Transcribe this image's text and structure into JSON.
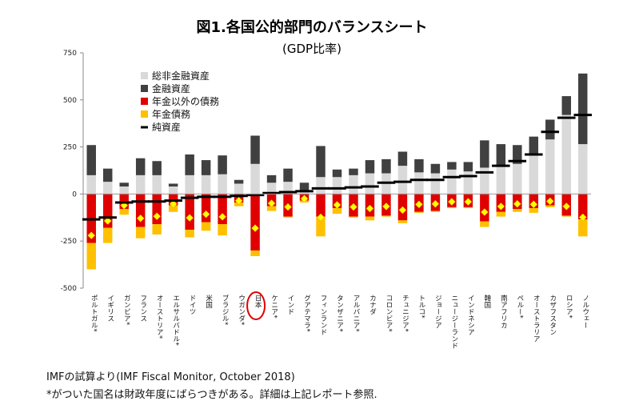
{
  "chart_data": {
    "type": "bar",
    "title": "図1.各国公的部門のバランスシート",
    "subtitle": "(GDP比率)",
    "ylim": [
      -500,
      750
    ],
    "yticks": [
      -500,
      -250,
      0,
      250,
      500,
      750
    ],
    "highlight_category": "日本",
    "legend": [
      {
        "name": "総非金融資産",
        "color": "#d9d9d9"
      },
      {
        "name": "金融資産",
        "color": "#404040"
      },
      {
        "name": "年金以外の債務",
        "color": "#e00000"
      },
      {
        "name": "年金債務",
        "color": "#ffc000"
      },
      {
        "name": "純資産",
        "color": "#000000"
      }
    ],
    "categories": [
      "ポルトガル*",
      "イギリス",
      "ガンビア*",
      "フランス",
      "オーストリア*",
      "エルサルバドル*",
      "ドイツ",
      "米国",
      "ブラジル*",
      "ウガンダ*",
      "日本",
      "ケニア*",
      "インド",
      "グアテマラ*",
      "フィンランド",
      "タンザニア*",
      "アルバニア*",
      "カナダ",
      "コロンビア*",
      "チュニジア*",
      "トルコ*",
      "ジョージア",
      "ニュージーランド",
      "インドネシア",
      "韓国",
      "南アフリカ",
      "ペルー*",
      "オーストラリア",
      "カザフスタン",
      "ロシア*",
      "ノルウェー"
    ],
    "series": [
      {
        "name": "総非金融資産",
        "values": [
          100,
          65,
          40,
          100,
          100,
          40,
          100,
          100,
          105,
          55,
          160,
          60,
          65,
          20,
          90,
          90,
          100,
          110,
          110,
          150,
          115,
          110,
          130,
          120,
          140,
          145,
          160,
          210,
          290,
          420,
          265
        ]
      },
      {
        "name": "金融資産",
        "values": [
          160,
          70,
          20,
          90,
          75,
          15,
          110,
          80,
          100,
          20,
          150,
          40,
          70,
          40,
          165,
          40,
          35,
          70,
          75,
          75,
          70,
          50,
          40,
          50,
          145,
          120,
          100,
          95,
          105,
          100,
          375
        ]
      },
      {
        "name": "年金以外の債務",
        "values": [
          -260,
          -180,
          -80,
          -175,
          -160,
          -60,
          -190,
          -150,
          -160,
          -45,
          -300,
          -65,
          -120,
          -35,
          -120,
          -75,
          -120,
          -120,
          -115,
          -140,
          -95,
          -90,
          -70,
          -70,
          -145,
          -95,
          -80,
          -75,
          -60,
          -115,
          -135
        ]
      },
      {
        "name": "年金債務",
        "values": [
          -140,
          -80,
          -30,
          -60,
          -55,
          -35,
          -40,
          -45,
          -60,
          -20,
          -30,
          -25,
          -5,
          -10,
          -105,
          -30,
          -5,
          -20,
          -5,
          -15,
          -5,
          -5,
          -5,
          -5,
          -30,
          -25,
          -15,
          -25,
          -10,
          -5,
          -90
        ]
      },
      {
        "name": "純資産",
        "values": [
          -135,
          -125,
          -45,
          -40,
          -40,
          -35,
          -20,
          -15,
          -15,
          -10,
          -5,
          5,
          10,
          15,
          30,
          30,
          35,
          40,
          60,
          65,
          75,
          75,
          90,
          95,
          115,
          150,
          175,
          210,
          330,
          405,
          420
        ]
      }
    ]
  },
  "footnotes": {
    "source": "IMFの試算より(IMF Fiscal Monitor, October 2018)",
    "note": "*がついた国名は財政年度にばらつきがある。詳細は上記レポート参照."
  }
}
